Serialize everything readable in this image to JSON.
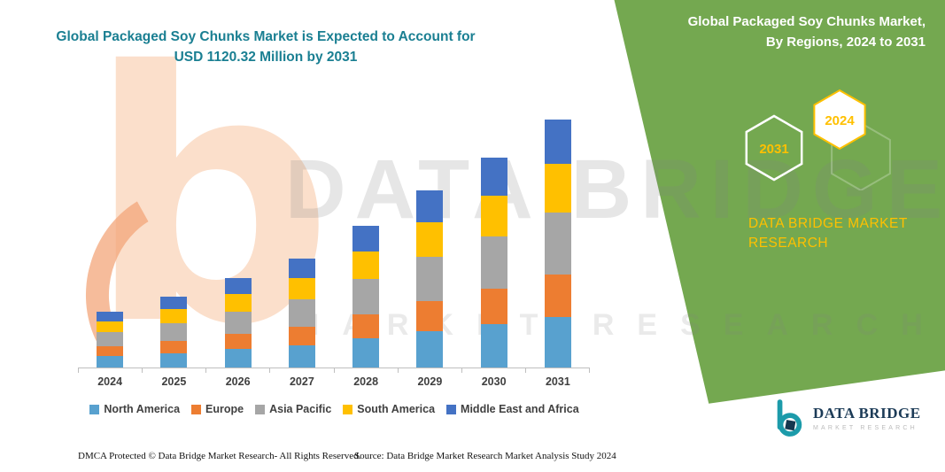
{
  "brand": {
    "green": "#74A850",
    "teal": "#1A7F92",
    "yellow": "#FFC000",
    "navy": "#1C3B57"
  },
  "main_chart": {
    "title_line1": "Global Packaged Soy Chunks Market is Expected to Account for",
    "title_line2": "USD 1120.32 Million by 2031"
  },
  "chart_data": {
    "type": "bar",
    "stacked": true,
    "title": "Global Packaged Soy Chunks Market is Expected to Account for USD 1120.32 Million by 2031",
    "categories": [
      "2024",
      "2025",
      "2026",
      "2027",
      "2028",
      "2029",
      "2030",
      "2031"
    ],
    "series": [
      {
        "name": "North America",
        "color": "#58A1CF",
        "values": [
          51.7,
          65.6,
          82.0,
          100.5,
          132.2,
          164.0,
          194.8,
          229.7
        ]
      },
      {
        "name": "Europe",
        "color": "#ED7D31",
        "values": [
          42.8,
          54.4,
          68.0,
          83.3,
          109.7,
          136.0,
          161.5,
          190.5
        ]
      },
      {
        "name": "Asia Pacific",
        "color": "#A6A6A6",
        "values": [
          63.0,
          80.0,
          100.0,
          122.5,
          161.3,
          200.0,
          237.5,
          280.1
        ]
      },
      {
        "name": "South America",
        "color": "#FFC000",
        "values": [
          49.1,
          62.4,
          78.0,
          95.6,
          125.8,
          156.0,
          185.3,
          218.5
        ]
      },
      {
        "name": "Middle East and Africa",
        "color": "#4472C4",
        "values": [
          45.4,
          57.6,
          72.0,
          88.2,
          116.1,
          144.0,
          171.0,
          201.5
        ]
      }
    ],
    "totals": [
      252,
      320,
      400,
      490,
      645,
      800,
      950,
      1120.32
    ],
    "xlabel": "",
    "ylabel": "",
    "ylim": [
      0,
      1200
    ],
    "grid": false,
    "legend_position": "bottom"
  },
  "right_panel": {
    "title_line1": "Global Packaged Soy Chunks Market,",
    "title_line2": "By Regions, 2024 to 2031",
    "hexagons": [
      {
        "label": "2031"
      },
      {
        "label": "2024"
      }
    ],
    "brand_line1": "DATA BRIDGE MARKET",
    "brand_line2": "RESEARCH"
  },
  "watermark": {
    "logo_glyph": "b",
    "line1": "DATA BRIDGE",
    "line2": "MARKET RESEARCH"
  },
  "footer": {
    "dmca": "DMCA Protected © Data Bridge Market Research-  All Rights Reserved.",
    "source": "Source: Data Bridge Market Research  Market Analysis Study 2024"
  },
  "logo": {
    "wordmark": "DATA BRIDGE",
    "subtext": "MARKET RESEARCH"
  }
}
